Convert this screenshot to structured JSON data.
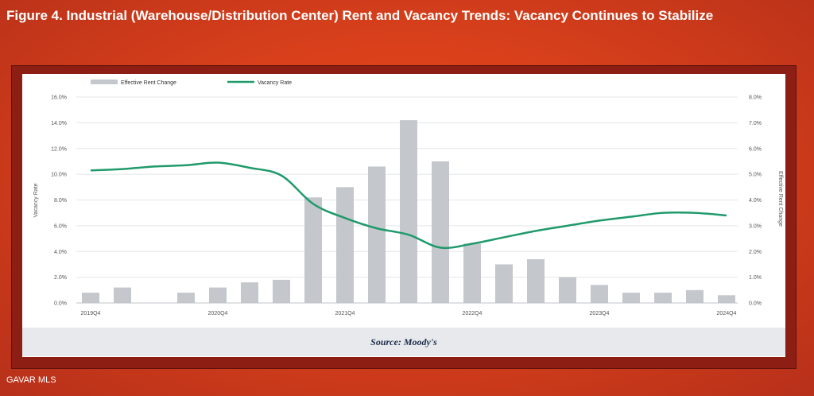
{
  "page": {
    "title": "Figure 4. Industrial (Warehouse/Distribution Center) Rent and Vacancy Trends: Vacancy Continues to Stabilize",
    "source": "Source: Moody's",
    "watermark": "GAVAR MLS"
  },
  "chart_data": {
    "type": "bar+line",
    "series": [
      {
        "name": "Effective Rent Change",
        "type": "bar",
        "axis": "right",
        "color": "#c4c7cc",
        "values": [
          0.4,
          0.6,
          null,
          0.4,
          0.6,
          0.8,
          0.9,
          4.1,
          4.5,
          5.3,
          7.1,
          5.5,
          2.3,
          1.5,
          1.7,
          1.0,
          0.7,
          0.4,
          0.4,
          0.5,
          0.3
        ]
      },
      {
        "name": "Vacancy Rate",
        "type": "line",
        "axis": "left",
        "color": "#1f9a6b",
        "values": [
          10.3,
          10.4,
          10.6,
          10.7,
          10.9,
          10.5,
          9.9,
          7.7,
          6.6,
          5.8,
          5.3,
          4.3,
          4.6,
          5.1,
          5.6,
          6.0,
          6.4,
          6.7,
          7.0,
          7.0,
          6.8
        ]
      }
    ],
    "categories": [
      "2019Q4",
      "",
      "",
      "",
      "2020Q4",
      "",
      "",
      "",
      "2021Q4",
      "",
      "",
      "",
      "2022Q4",
      "",
      "",
      "",
      "2023Q4",
      "",
      "",
      "",
      "2024Q4"
    ],
    "left_axis": {
      "label": "Vacancy Rate",
      "ticks": [
        "16.0%",
        "14.0%",
        "12.0%",
        "10.0%",
        "8.0%",
        "6.0%",
        "4.0%",
        "2.0%",
        "0.0%"
      ],
      "range": [
        0,
        16
      ]
    },
    "right_axis": {
      "label": "Effective Rent Change",
      "ticks": [
        "8.0%",
        "7.0%",
        "6.0%",
        "5.0%",
        "4.0%",
        "3.0%",
        "2.0%",
        "1.0%",
        "0.0%"
      ],
      "range": [
        0,
        8
      ]
    },
    "grid": true,
    "legend": "top-left"
  }
}
